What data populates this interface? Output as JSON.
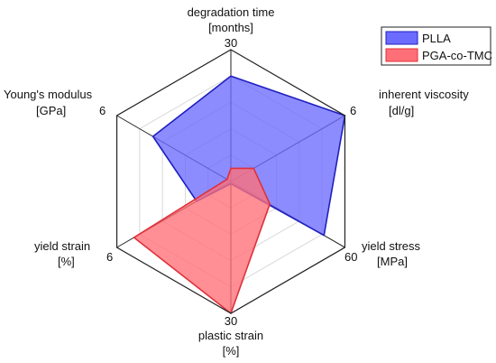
{
  "chart_data": {
    "type": "radar",
    "axes": [
      {
        "name": "degradation time",
        "unit": "[months]",
        "max": 30
      },
      {
        "name": "inherent viscosity",
        "unit": "[dl/g]",
        "max": 6
      },
      {
        "name": "yield stress",
        "unit": "[MPa]",
        "max": 60
      },
      {
        "name": "plastic strain",
        "unit": "[%]",
        "max": 30
      },
      {
        "name": "yield strain",
        "unit": "[%]",
        "max": 6
      },
      {
        "name": "Young's modulus",
        "unit": "[GPa]",
        "max": 6
      }
    ],
    "rings": 5,
    "series": [
      {
        "name": "PLLA",
        "values": [
          24,
          6,
          49,
          0.5,
          1.8,
          4.1
        ],
        "color": "#1f1fbf",
        "fill": "#6b6bff"
      },
      {
        "name": "PGA-co-TMC",
        "values": [
          3,
          1.2,
          20.5,
          30,
          5.1,
          0.2
        ],
        "color": "#e0303a",
        "fill": "#ff6f77"
      }
    ],
    "legend_position": "top-right"
  }
}
